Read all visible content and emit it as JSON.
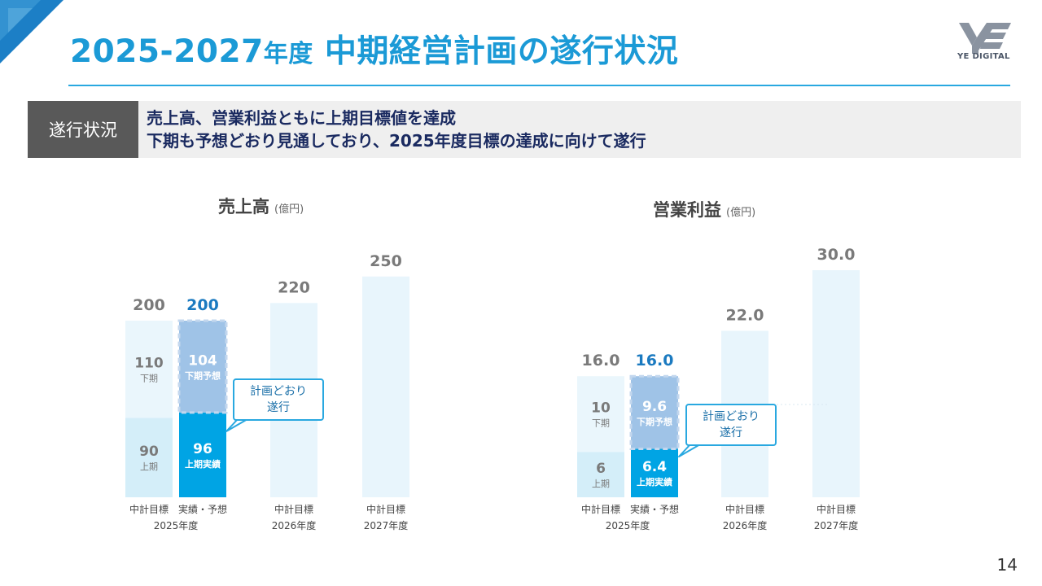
{
  "header": {
    "title_main": "2025-2027",
    "title_small": "年度",
    "title_rest": " 中期経営計画の遂行状況",
    "logo_text": "YE DIGITAL",
    "page_number": "14"
  },
  "status": {
    "tag": "遂行状況",
    "line1": "売上高、営業利益ともに上期目標値を達成",
    "line2": "下期も予想どおり見通しており、2025年度目標の達成に向けて遂行"
  },
  "colors": {
    "accent": "#1b9ad6",
    "plan_first_half": "#d4eef9",
    "plan_second_half": "#eaf6fc",
    "actual_first_half": "#00a4e4",
    "forecast_second_half": "#9fc3e7",
    "future_plan": "#e8f5fc"
  },
  "chart_data": [
    {
      "type": "bar",
      "title": "売上高",
      "unit": "(億円)",
      "callout": [
        "計画どおり",
        "遂行"
      ],
      "bars": [
        {
          "label": "中計目標",
          "group": "2025年度",
          "total": 200,
          "total_label": "200",
          "segments": [
            {
              "value": 90,
              "label": "90",
              "sub": "上期"
            },
            {
              "value": 110,
              "label": "110",
              "sub": "下期"
            }
          ]
        },
        {
          "label": "実績・予想",
          "group": "2025年度",
          "total": 200,
          "total_label": "200",
          "segments": [
            {
              "value": 96,
              "label": "96",
              "sub": "上期実績"
            },
            {
              "value": 104,
              "label": "104",
              "sub": "下期予想"
            }
          ]
        },
        {
          "label": "中計目標",
          "group": "2026年度",
          "total": 220,
          "total_label": "220",
          "segments": []
        },
        {
          "label": "中計目標",
          "group": "2027年度",
          "total": 250,
          "total_label": "250",
          "segments": []
        }
      ]
    },
    {
      "type": "bar",
      "title": "営業利益",
      "unit": "(億円)",
      "callout": [
        "計画どおり",
        "遂行"
      ],
      "bars": [
        {
          "label": "中計目標",
          "group": "2025年度",
          "total": 16.0,
          "total_label": "16.0",
          "segments": [
            {
              "value": 6,
              "label": "6",
              "sub": "上期"
            },
            {
              "value": 10,
              "label": "10",
              "sub": "下期"
            }
          ]
        },
        {
          "label": "実績・予想",
          "group": "2025年度",
          "total": 16.0,
          "total_label": "16.0",
          "segments": [
            {
              "value": 6.4,
              "label": "6.4",
              "sub": "上期実績"
            },
            {
              "value": 9.6,
              "label": "9.6",
              "sub": "下期予想"
            }
          ]
        },
        {
          "label": "中計目標",
          "group": "2026年度",
          "total": 22.0,
          "total_label": "22.0",
          "segments": []
        },
        {
          "label": "中計目標",
          "group": "2027年度",
          "total": 30.0,
          "total_label": "30.0",
          "segments": []
        }
      ]
    }
  ]
}
